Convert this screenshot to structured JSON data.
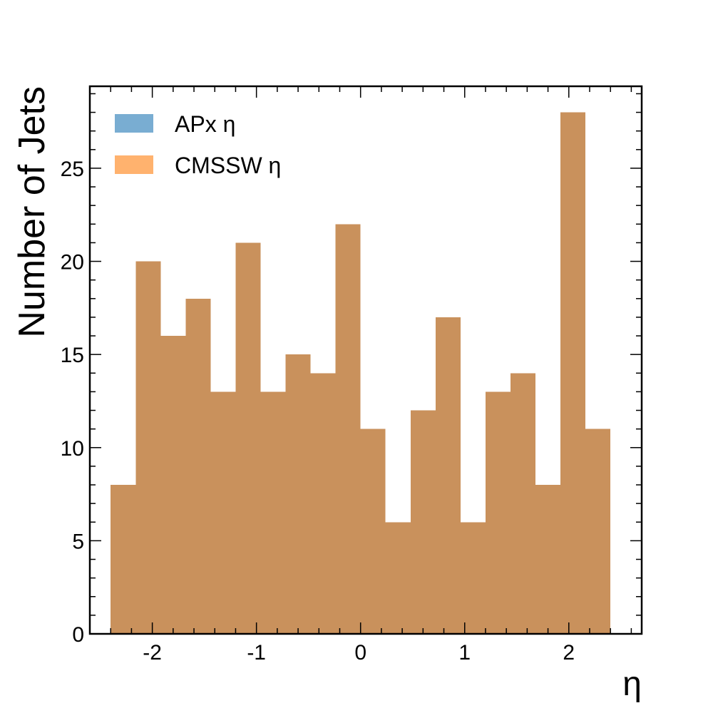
{
  "chart_data": {
    "type": "bar",
    "xlabel": "η",
    "ylabel": "Number of Jets",
    "xlim": [
      -2.6,
      2.7
    ],
    "ylim": [
      0,
      29.4
    ],
    "xticks": [
      -2,
      -1,
      0,
      1,
      2
    ],
    "yticks": [
      0,
      5,
      10,
      15,
      20,
      25
    ],
    "xtick_labels": [
      "-2",
      "-1",
      "0",
      "1",
      "2"
    ],
    "ytick_labels": [
      "0",
      "5",
      "10",
      "15",
      "20",
      "25"
    ],
    "legend_position": "top-left",
    "bin_edges": [
      -2.4,
      -2.16,
      -1.92,
      -1.68,
      -1.44,
      -1.2,
      -0.96,
      -0.72,
      -0.48,
      -0.24,
      0.0,
      0.24,
      0.48,
      0.72,
      0.96,
      1.2,
      1.44,
      1.68,
      1.92,
      2.16,
      2.4
    ],
    "series": [
      {
        "name": "APx η",
        "color": "#1f77b4",
        "alpha": 0.6,
        "values": [
          8,
          20,
          16,
          18,
          13,
          21,
          13,
          15,
          14,
          22,
          11,
          6,
          12,
          17,
          6,
          13,
          14,
          8,
          28,
          11
        ]
      },
      {
        "name": "CMSSW η",
        "color": "#ff7f0e",
        "alpha": 0.6,
        "values": [
          8,
          20,
          16,
          18,
          13,
          21,
          13,
          15,
          14,
          22,
          11,
          6,
          12,
          17,
          6,
          13,
          14,
          8,
          28,
          11
        ]
      }
    ]
  }
}
